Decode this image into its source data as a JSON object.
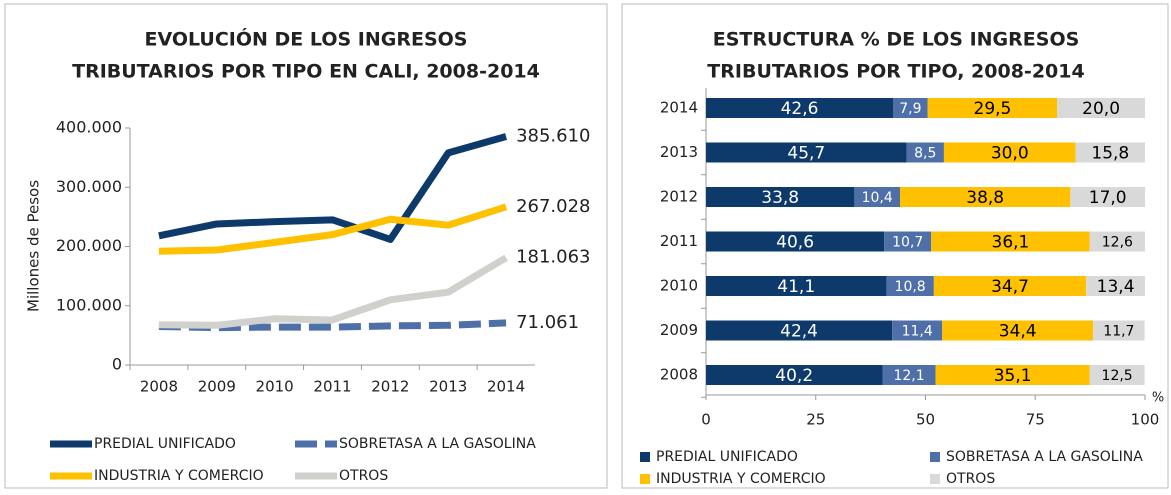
{
  "chart_data": [
    {
      "type": "line",
      "title": [
        "EVOLUCIÓN DE LOS INGRESOS",
        "TRIBUTARIOS POR TIPO EN CALI, 2008-2014"
      ],
      "ylabel": "Millones de Pesos",
      "categories": [
        "2008",
        "2009",
        "2010",
        "2011",
        "2012",
        "2013",
        "2014"
      ],
      "ylim": [
        0,
        400000
      ],
      "yticks": [
        {
          "value": 0,
          "label": "0"
        },
        {
          "value": 100000,
          "label": "100.000"
        },
        {
          "value": 200000,
          "label": "200.000"
        },
        {
          "value": 300000,
          "label": "300.000"
        },
        {
          "value": 400000,
          "label": "400.000"
        }
      ],
      "series": [
        {
          "name": "PREDIAL UNIFICADO",
          "color": "#0d3a6b",
          "style": "solid",
          "values": [
            218000,
            238000,
            242000,
            245000,
            212000,
            358000,
            385610
          ],
          "value_labels": [
            null,
            null,
            null,
            null,
            null,
            null,
            "385.610"
          ]
        },
        {
          "name": "SOBRETASA A LA GASOLINA",
          "color": "#4f6fa8",
          "style": "dashed",
          "values": [
            65000,
            63000,
            64000,
            64000,
            66000,
            67000,
            71061
          ],
          "value_labels": [
            null,
            null,
            null,
            null,
            null,
            null,
            "71.061"
          ]
        },
        {
          "name": "INDUSTRIA Y COMERCIO",
          "color": "#ffc000",
          "style": "solid",
          "values": [
            192000,
            194000,
            207000,
            220000,
            246000,
            236000,
            267028
          ],
          "value_labels": [
            null,
            null,
            null,
            null,
            null,
            null,
            "267.028"
          ]
        },
        {
          "name": "OTROS",
          "color": "#d0d0cc",
          "style": "solid",
          "values": [
            68000,
            67000,
            78000,
            76000,
            110000,
            123000,
            181063
          ],
          "value_labels": [
            null,
            null,
            null,
            null,
            null,
            null,
            "181.063"
          ]
        }
      ]
    },
    {
      "type": "stacked_barh",
      "title": [
        "ESTRUCTURA % DE LOS INGRESOS",
        "TRIBUTARIOS POR TIPO, 2008-2014"
      ],
      "xlabel": "%",
      "categories": [
        "2008",
        "2009",
        "2010",
        "2011",
        "2012",
        "2013",
        "2014"
      ],
      "xlim": [
        0,
        100
      ],
      "xticks": [
        0,
        25,
        50,
        75,
        100
      ],
      "series": [
        {
          "name": "PREDIAL UNIFICADO",
          "color": "#0d3a6b",
          "text_color": "#ffffff",
          "values": [
            40.2,
            42.4,
            41.1,
            40.6,
            33.8,
            45.7,
            42.6
          ],
          "value_labels": [
            "40,2",
            "42,4",
            "41,1",
            "40,6",
            "33,8",
            "45,7",
            "42,6"
          ]
        },
        {
          "name": "SOBRETASA A LA GASOLINA",
          "color": "#4f6fa8",
          "text_color": "#ffffff",
          "values": [
            12.1,
            11.4,
            10.8,
            10.7,
            10.4,
            8.5,
            7.9
          ],
          "value_labels": [
            "12,1",
            "11,4",
            "10,8",
            "10,7",
            "10,4",
            "8,5",
            "7,9"
          ]
        },
        {
          "name": "INDUSTRIA Y COMERCIO",
          "color": "#ffc000",
          "text_color": "#000000",
          "values": [
            35.1,
            34.4,
            34.7,
            36.1,
            38.8,
            30.0,
            29.5
          ],
          "value_labels": [
            "35,1",
            "34,4",
            "34,7",
            "36,1",
            "38,8",
            "30,0",
            "29,5"
          ]
        },
        {
          "name": "OTROS",
          "color": "#d9d9d9",
          "text_color": "#000000",
          "values": [
            12.5,
            11.7,
            13.4,
            12.6,
            17.0,
            15.8,
            20.0
          ],
          "value_labels": [
            "12,5",
            "11,7",
            "13,4",
            "12,6",
            "17,0",
            "15,8",
            "20,0"
          ]
        }
      ]
    }
  ]
}
